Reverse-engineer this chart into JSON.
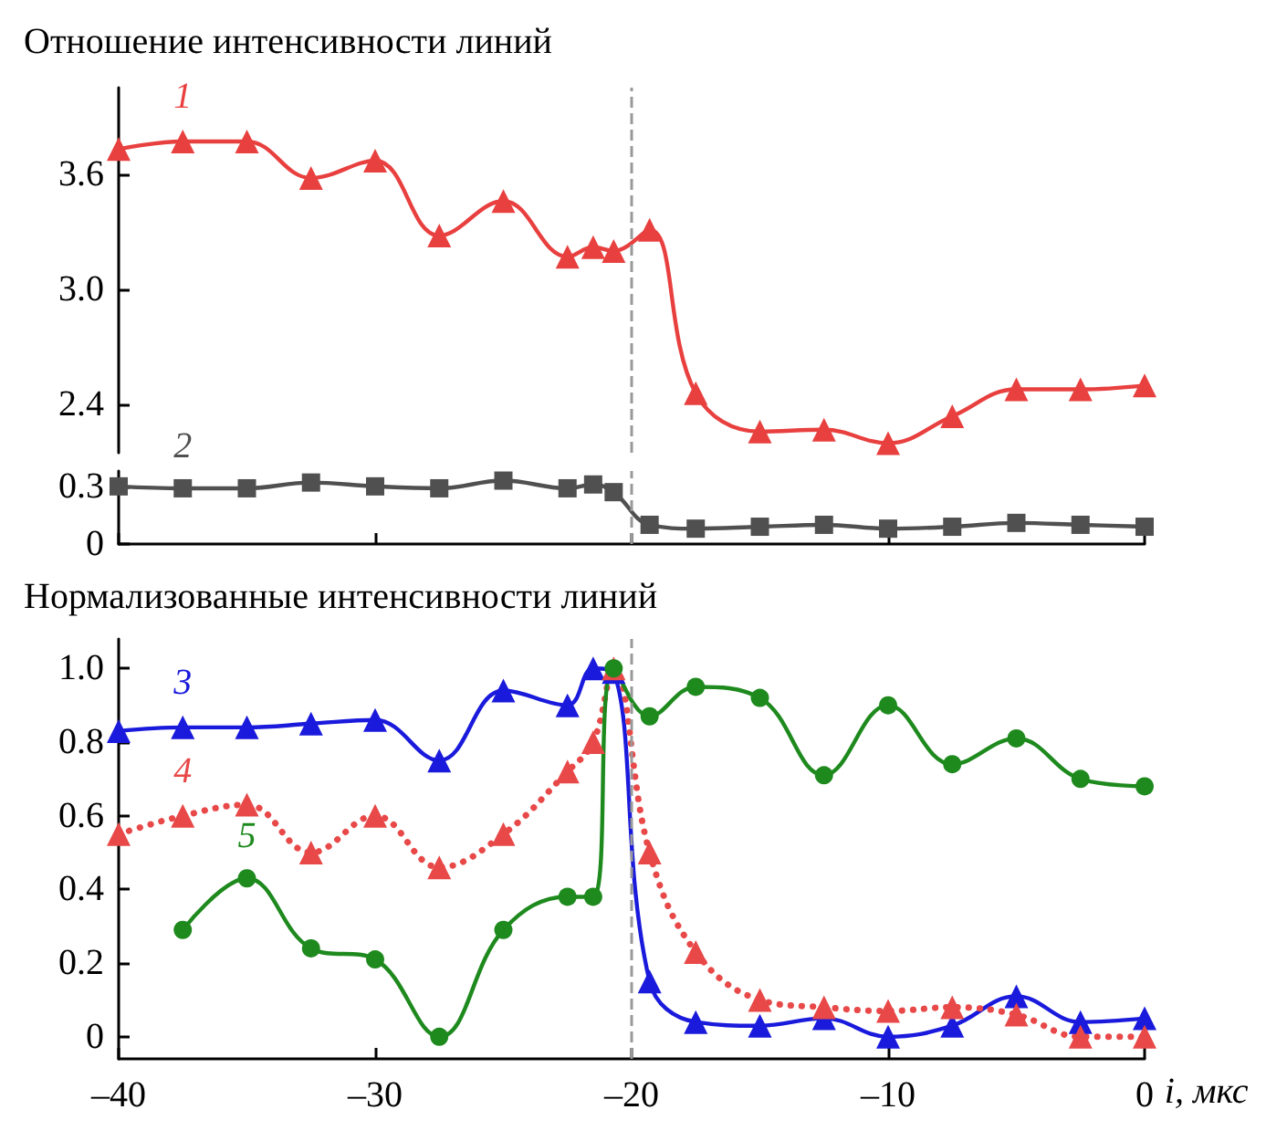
{
  "chart_data": [
    {
      "type": "line",
      "title": "Отношение интенсивности линий",
      "x": [
        -40,
        -37.5,
        -35,
        -32.5,
        -30,
        -27.5,
        -25,
        -22.5,
        -21.5,
        -20.7,
        -19.3,
        -17.5,
        -15,
        -12.5,
        -10,
        -7.5,
        -5,
        -2.5,
        0
      ],
      "series": [
        {
          "name": "1",
          "color": "#e8403f",
          "marker": "triangle",
          "values": [
            3.73,
            3.77,
            3.77,
            3.58,
            3.67,
            3.28,
            3.46,
            3.17,
            3.22,
            3.2,
            3.31,
            2.46,
            2.26,
            2.27,
            2.2,
            2.34,
            2.48,
            2.48,
            2.5
          ]
        }
      ],
      "xlim": [
        -40,
        0
      ],
      "ylim": [
        2.15,
        4.05
      ],
      "yticks": [
        2.4,
        {
          "value": 3,
          "label": "3.0"
        },
        3.6
      ],
      "tick_labels": "y",
      "grid": false,
      "ref_lines": [
        {
          "axis": "x",
          "value": -20,
          "color": "#999999",
          "line_style": "dashed"
        }
      ]
    },
    {
      "type": "line",
      "x": [
        -40,
        -37.5,
        -35,
        -32.5,
        -30,
        -27.5,
        -25,
        -22.5,
        -21.5,
        -20.7,
        -19.3,
        -17.5,
        -15,
        -12.5,
        -10,
        -7.5,
        -5,
        -2.5,
        0
      ],
      "series": [
        {
          "name": "2",
          "color": "#505050",
          "marker": "square",
          "values": [
            0.3,
            0.29,
            0.29,
            0.32,
            0.3,
            0.29,
            0.33,
            0.29,
            0.31,
            0.27,
            0.1,
            0.08,
            0.09,
            0.1,
            0.08,
            0.09,
            0.11,
            0.1,
            0.09
          ]
        }
      ],
      "xlim": [
        -40,
        0
      ],
      "xticks": [
        {
          "value": -40,
          "label": null
        },
        {
          "value": -30,
          "label": null
        },
        {
          "value": -20,
          "label": null
        },
        {
          "value": -10,
          "label": null
        },
        {
          "value": 0,
          "label": null
        }
      ],
      "ylim": [
        0,
        0.38
      ],
      "yticks": [
        0,
        0.3
      ],
      "tick_labels": "y",
      "grid": false,
      "ref_lines": [
        {
          "axis": "x",
          "value": -20,
          "color": "#999999",
          "line_style": "dashed"
        }
      ]
    },
    {
      "type": "line",
      "title": "Нормализованные интенсивности линий",
      "xlabel": "i, мкс",
      "x": [
        -40,
        -37.5,
        -35,
        -32.5,
        -30,
        -27.5,
        -25,
        -22.5,
        -21.5,
        -20.7,
        -19.3,
        -17.5,
        -15,
        -12.5,
        -10,
        -7.5,
        -5,
        -2.5,
        0
      ],
      "series": [
        {
          "name": "3",
          "color": "#1a1adc",
          "marker": "triangle",
          "line_style": "solid",
          "values": [
            0.83,
            0.84,
            0.84,
            0.85,
            0.86,
            0.75,
            0.94,
            0.9,
            1.0,
            0.99,
            0.15,
            0.04,
            0.03,
            0.05,
            0.0,
            0.03,
            0.11,
            0.04,
            0.05
          ]
        },
        {
          "name": "4",
          "color": "#e84848",
          "marker": "triangle",
          "line_style": "dotted",
          "values": [
            0.55,
            0.6,
            0.63,
            0.5,
            0.6,
            0.46,
            0.55,
            0.72,
            0.8,
            1.0,
            0.5,
            0.23,
            0.1,
            0.08,
            0.07,
            0.08,
            0.06,
            0.0,
            0.0
          ]
        },
        {
          "name": "5",
          "color": "#1e8a1e",
          "marker": "circle",
          "line_style": "solid",
          "values": [
            null,
            0.29,
            0.43,
            0.24,
            0.21,
            0.0,
            0.29,
            0.38,
            0.38,
            1.0,
            0.87,
            0.95,
            0.92,
            0.71,
            0.9,
            0.74,
            0.81,
            0.7,
            0.68
          ]
        }
      ],
      "xlim": [
        -40,
        0
      ],
      "xticks": [
        {
          "value": -40,
          "label": "–40"
        },
        {
          "value": -30,
          "label": "–30"
        },
        {
          "value": -20,
          "label": "–20"
        },
        {
          "value": -10,
          "label": "–10"
        },
        0
      ],
      "ylim": [
        -0.06,
        1.08
      ],
      "yticks": [
        0,
        0.2,
        0.4,
        0.6,
        0.8,
        {
          "value": 1,
          "label": "1.0"
        }
      ],
      "grid": false,
      "ref_lines": [
        {
          "axis": "x",
          "value": -20,
          "color": "#999999",
          "line_style": "dashed"
        }
      ]
    }
  ]
}
